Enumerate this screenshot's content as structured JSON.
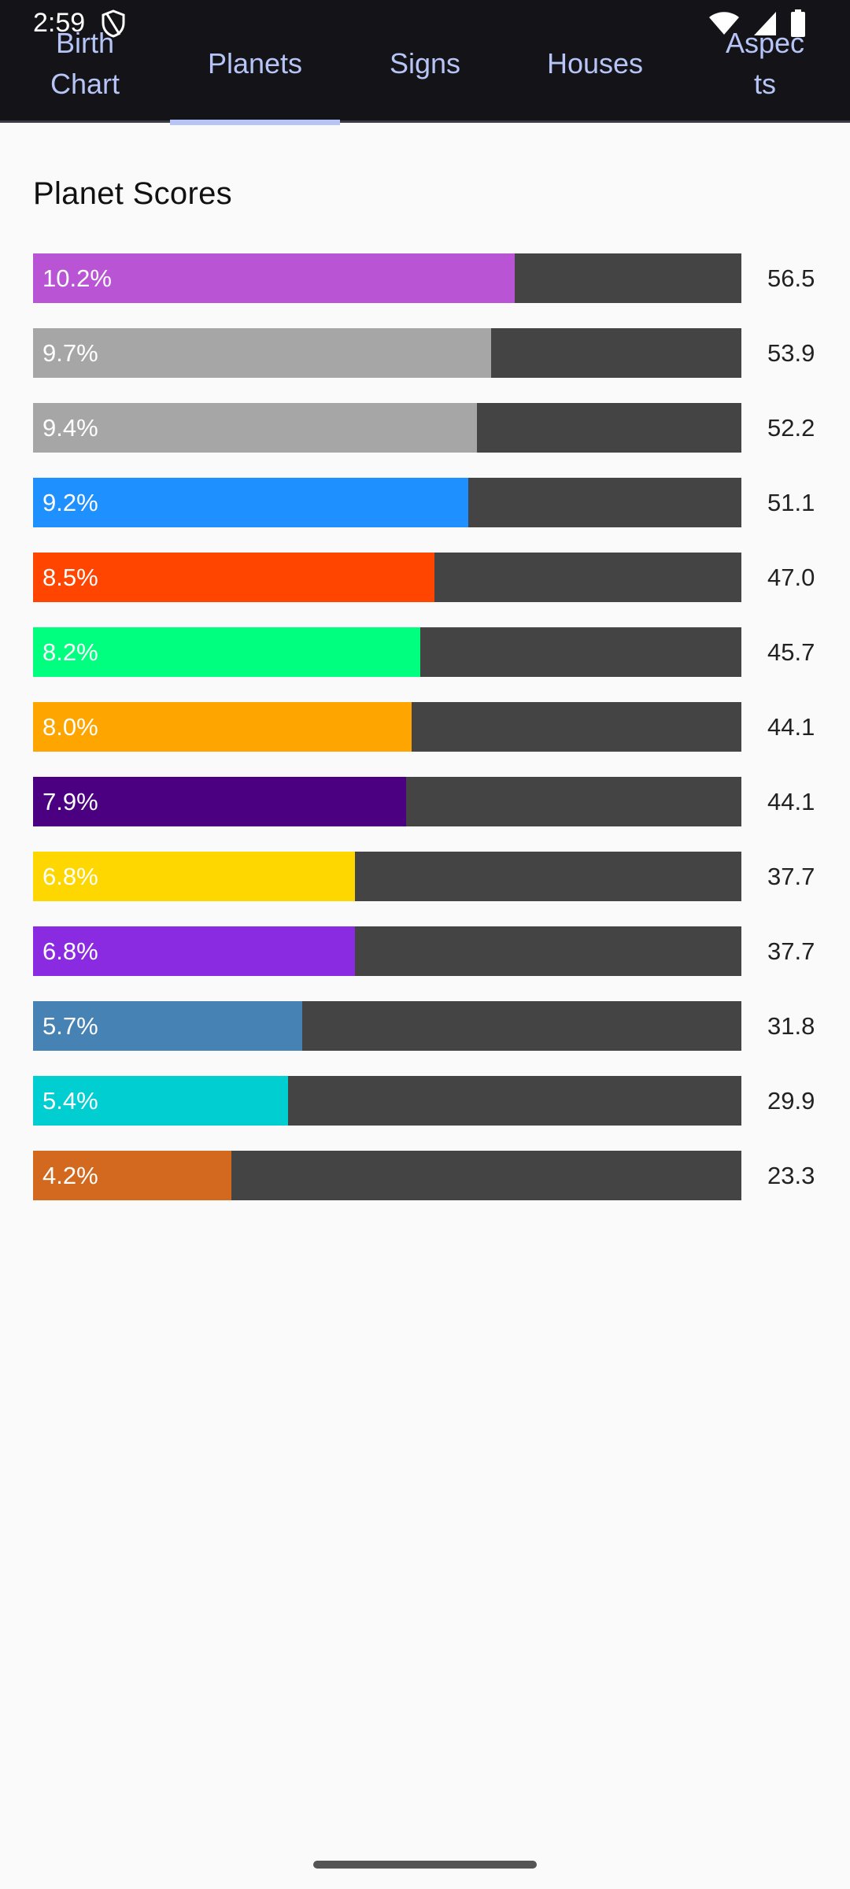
{
  "status_bar": {
    "time": "2:59"
  },
  "tabs": [
    {
      "label": "Birth Chart",
      "active": false
    },
    {
      "label": "Planets",
      "active": true
    },
    {
      "label": "Signs",
      "active": false
    },
    {
      "label": "Houses",
      "active": false
    },
    {
      "label": "Aspects",
      "active": false
    }
  ],
  "section": {
    "title": "Planet Scores"
  },
  "planet_scores": [
    {
      "percent_label": "10.2%",
      "score": "56.5",
      "fill_fraction": 0.68,
      "color": "#b955d4"
    },
    {
      "percent_label": "9.7%",
      "score": "53.9",
      "fill_fraction": 0.647,
      "color": "#a6a6a6"
    },
    {
      "percent_label": "9.4%",
      "score": "52.2",
      "fill_fraction": 0.627,
      "color": "#a6a6a6"
    },
    {
      "percent_label": "9.2%",
      "score": "51.1",
      "fill_fraction": 0.614,
      "color": "#1e90ff"
    },
    {
      "percent_label": "8.5%",
      "score": "47.0",
      "fill_fraction": 0.567,
      "color": "#ff4500"
    },
    {
      "percent_label": "8.2%",
      "score": "45.7",
      "fill_fraction": 0.547,
      "color": "#00ff7f"
    },
    {
      "percent_label": "8.0%",
      "score": "44.1",
      "fill_fraction": 0.534,
      "color": "#ffa500"
    },
    {
      "percent_label": "7.9%",
      "score": "44.1",
      "fill_fraction": 0.527,
      "color": "#4b0082"
    },
    {
      "percent_label": "6.8%",
      "score": "37.7",
      "fill_fraction": 0.454,
      "color": "#ffd700"
    },
    {
      "percent_label": "6.8%",
      "score": "37.7",
      "fill_fraction": 0.454,
      "color": "#8a2be2"
    },
    {
      "percent_label": "5.7%",
      "score": "31.8",
      "fill_fraction": 0.38,
      "color": "#4682b4"
    },
    {
      "percent_label": "5.4%",
      "score": "29.9",
      "fill_fraction": 0.36,
      "color": "#00ced1"
    },
    {
      "percent_label": "4.2%",
      "score": "23.3",
      "fill_fraction": 0.28,
      "color": "#d2691e"
    }
  ]
}
